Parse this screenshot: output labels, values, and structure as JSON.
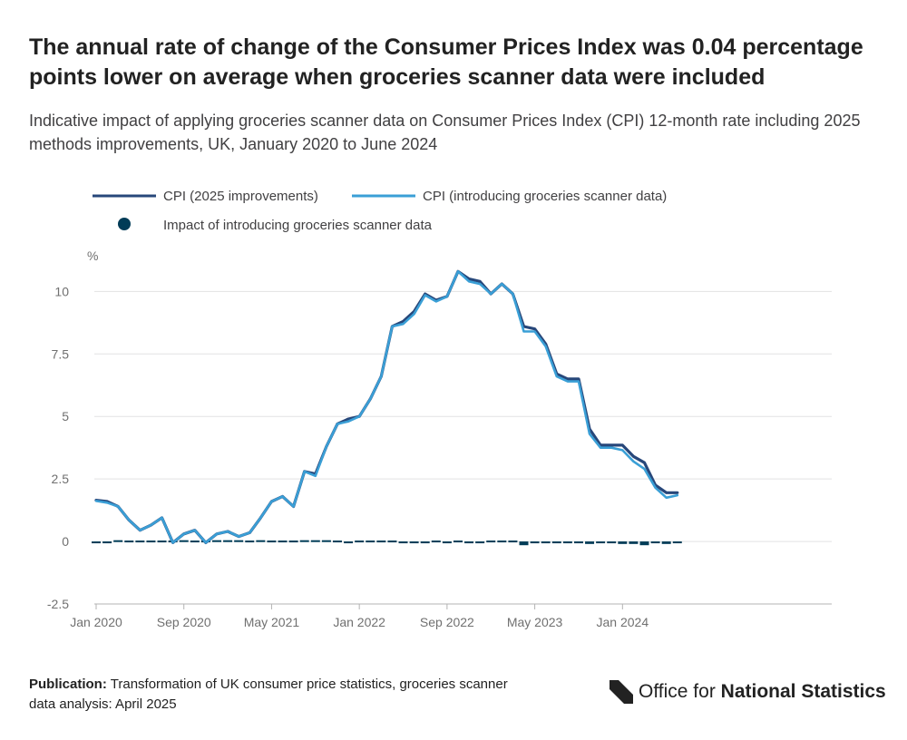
{
  "title": "The annual rate of change of the Consumer Prices Index was 0.04 percentage points lower on average when groceries scanner data were included",
  "subtitle": "Indicative impact of applying groceries scanner data on Consumer Prices Index (CPI) 12-month rate including 2025 methods improvements, UK, January 2020 to June 2024",
  "footer": {
    "publication_label": "Publication:",
    "publication_text": "Transformation of UK consumer price statistics, groceries scanner data analysis: April 2025"
  },
  "logo": {
    "text_regular": "Office for",
    "text_bold": "National Statistics"
  },
  "colors": {
    "dark_series": "#27477a",
    "light_series": "#3a9fd6",
    "impact": "#003c57",
    "grid": "#e2e2e3",
    "axis": "#b3b3b3"
  },
  "chart_data": {
    "type": "line",
    "title": "The annual rate of change of the Consumer Prices Index was 0.04 percentage points lower on average when groceries scanner data were included",
    "ylabel": "%",
    "xlabel": "",
    "ylim": [
      -2.5,
      11.5
    ],
    "yticks": [
      -2.5,
      0,
      2.5,
      5,
      7.5,
      10
    ],
    "ytick_labels": [
      "-2.5",
      "0",
      "2.5",
      "5",
      "7.5",
      "10"
    ],
    "xticks": [
      {
        "index": 0,
        "label": "Jan 2020"
      },
      {
        "index": 8,
        "label": "Sep 2020"
      },
      {
        "index": 16,
        "label": "May 2021"
      },
      {
        "index": 24,
        "label": "Jan 2022"
      },
      {
        "index": 32,
        "label": "Sep 2022"
      },
      {
        "index": 40,
        "label": "May 2023"
      },
      {
        "index": 48,
        "label": "Jan 2024"
      }
    ],
    "legend_position": "top-left",
    "months": [
      "Jan 2020",
      "Feb 2020",
      "Mar 2020",
      "Apr 2020",
      "May 2020",
      "Jun 2020",
      "Jul 2020",
      "Aug 2020",
      "Sep 2020",
      "Oct 2020",
      "Nov 2020",
      "Dec 2020",
      "Jan 2021",
      "Feb 2021",
      "Mar 2021",
      "Apr 2021",
      "May 2021",
      "Jun 2021",
      "Jul 2021",
      "Aug 2021",
      "Sep 2021",
      "Oct 2021",
      "Nov 2021",
      "Dec 2021",
      "Jan 2022",
      "Feb 2022",
      "Mar 2022",
      "Apr 2022",
      "May 2022",
      "Jun 2022",
      "Jul 2022",
      "Aug 2022",
      "Sep 2022",
      "Oct 2022",
      "Nov 2022",
      "Dec 2022",
      "Jan 2023",
      "Feb 2023",
      "Mar 2023",
      "Apr 2023",
      "May 2023",
      "Jun 2023",
      "Jul 2023",
      "Aug 2023",
      "Sep 2023",
      "Oct 2023",
      "Nov 2023",
      "Dec 2023",
      "Jan 2024",
      "Feb 2024",
      "Mar 2024",
      "Apr 2024",
      "May 2024",
      "Jun 2024"
    ],
    "series": [
      {
        "name": "CPI (2025 improvements)",
        "style": "line",
        "values": [
          1.65,
          1.6,
          1.4,
          0.85,
          0.45,
          0.65,
          0.95,
          -0.05,
          0.3,
          0.45,
          -0.05,
          0.3,
          0.4,
          0.2,
          0.35,
          0.95,
          1.6,
          1.8,
          1.4,
          2.8,
          2.7,
          3.8,
          4.7,
          4.9,
          5.0,
          5.7,
          6.6,
          8.6,
          8.8,
          9.2,
          9.9,
          9.65,
          9.8,
          10.8,
          10.5,
          10.4,
          9.9,
          10.3,
          9.9,
          8.6,
          8.5,
          7.9,
          6.7,
          6.5,
          6.5,
          4.5,
          3.85,
          3.85,
          3.85,
          3.4,
          3.15,
          2.25,
          1.95,
          1.95
        ]
      },
      {
        "name": "CPI (introducing groceries scanner data)",
        "style": "line",
        "values": [
          1.62,
          1.55,
          1.4,
          0.85,
          0.45,
          0.65,
          0.95,
          -0.05,
          0.3,
          0.45,
          -0.05,
          0.3,
          0.4,
          0.2,
          0.35,
          0.95,
          1.6,
          1.8,
          1.4,
          2.8,
          2.62,
          3.8,
          4.7,
          4.8,
          5.0,
          5.7,
          6.6,
          8.6,
          8.7,
          9.1,
          9.85,
          9.6,
          9.8,
          10.8,
          10.4,
          10.3,
          9.9,
          10.3,
          9.9,
          8.4,
          8.4,
          7.8,
          6.6,
          6.4,
          6.4,
          4.3,
          3.75,
          3.75,
          3.65,
          3.2,
          2.9,
          2.15,
          1.75,
          1.85
        ]
      },
      {
        "name": "Impact of introducing groceries scanner data",
        "style": "bar",
        "values": [
          -0.03,
          -0.05,
          0.05,
          0,
          0,
          0,
          0,
          0,
          0.05,
          0,
          0,
          0.05,
          0.05,
          0.05,
          0,
          0.05,
          0,
          0,
          0,
          0.05,
          0.05,
          0.05,
          0,
          -0.05,
          0,
          0,
          0,
          0,
          -0.05,
          -0.05,
          -0.05,
          0,
          -0.05,
          0,
          -0.05,
          -0.05,
          0,
          0,
          0,
          -0.15,
          -0.05,
          -0.05,
          -0.05,
          -0.05,
          -0.05,
          -0.1,
          -0.05,
          -0.05,
          -0.1,
          -0.1,
          -0.15,
          -0.05,
          -0.1,
          -0.05
        ]
      }
    ]
  }
}
